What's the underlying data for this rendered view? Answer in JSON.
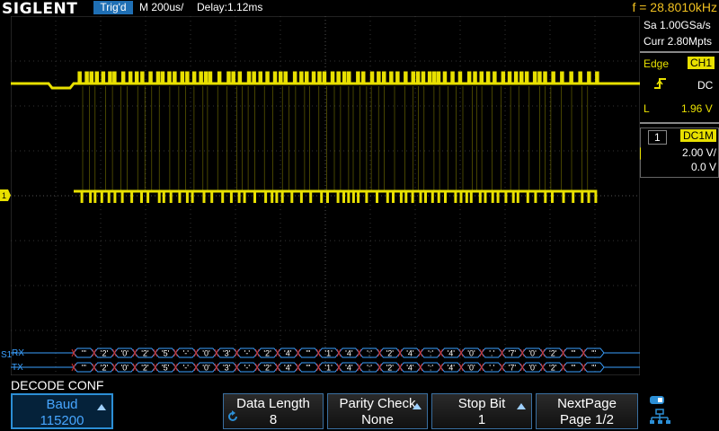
{
  "header": {
    "brand": "SIGLENT",
    "trig_status": "Trig'd",
    "timebase": "M 200us/",
    "delay": "Delay:1.12ms",
    "frequency": "f = 28.8010kHz"
  },
  "acquisition": {
    "sample_rate": "Sa 1.00GSa/s",
    "memory_depth": "Curr 2.80Mpts"
  },
  "trigger": {
    "type": "Edge",
    "source": "CH1",
    "coupling": "DC",
    "level": "L",
    "level_value": "1.96 V"
  },
  "channel": {
    "number": "1",
    "coupling": "DC1M",
    "volts_div": "2.00 V/",
    "offset": "0.0 V"
  },
  "bus": {
    "rx_label": "RX",
    "tx_label": "TX",
    "marker": "S1",
    "packets": [
      "'",
      "2",
      "0",
      "2",
      "5",
      "-",
      "0",
      "3",
      "-",
      "2",
      "4",
      "'",
      "1",
      "4",
      ":",
      "2",
      "4",
      ":",
      "4",
      "0",
      ".",
      "7",
      "0",
      "2",
      "'",
      "'"
    ]
  },
  "softkeys": {
    "title": "DECODE CONF",
    "baud_label": "Baud",
    "baud_value": "115200",
    "data_length_label": "Data Length",
    "data_length_value": "8",
    "parity_label": "Parity Check",
    "parity_value": "None",
    "stop_label": "Stop Bit",
    "stop_value": "1",
    "next_label": "NextPage",
    "next_value": "Page 1/2"
  },
  "colors": {
    "trace": "#e8e000",
    "bus": "#3aa0ff",
    "accent": "#1f6fb4"
  }
}
